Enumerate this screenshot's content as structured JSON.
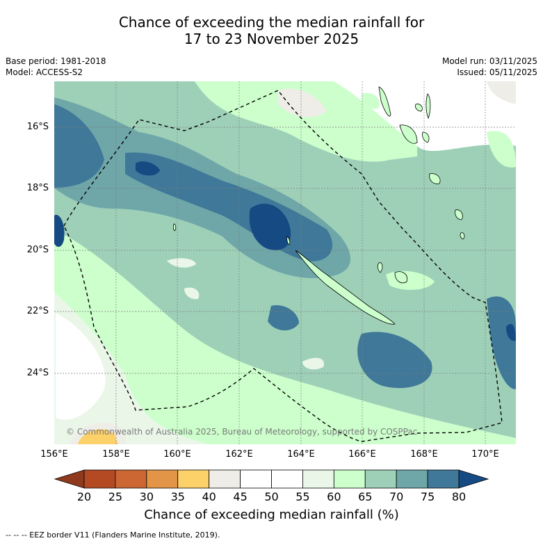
{
  "title_line1": "Chance of exceeding the median rainfall for",
  "title_line2": "17 to 23 November 2025",
  "meta_left": [
    "Base period: 1981-2018",
    "Model: ACCESS-S2"
  ],
  "meta_right": [
    "Model run: 03/11/2025",
    "Issued: 05/11/2025"
  ],
  "lat_labels": [
    "16°S",
    "18°S",
    "20°S",
    "22°S",
    "24°S"
  ],
  "lon_labels": [
    "156°E",
    "158°E",
    "160°E",
    "162°E",
    "164°E",
    "166°E",
    "168°E",
    "170°E"
  ],
  "copyright": "© Commonwealth of Australia 2025, Bureau of Meteorology, supported by COSPPac",
  "colorbar": {
    "title": "Chance of exceeding median rainfall (%)",
    "ticks": [
      "20",
      "25",
      "30",
      "35",
      "40",
      "45",
      "50",
      "55",
      "60",
      "65",
      "70",
      "75",
      "80"
    ],
    "colors": [
      "#8f3a1e",
      "#b34a24",
      "#cc6633",
      "#e29447",
      "#fdd16a",
      "#efede8",
      "#ffffff",
      "#ffffff",
      "#eaf6e8",
      "#ccffcc",
      "#9ed0b8",
      "#6fa6a8",
      "#3f7898",
      "#154a82"
    ]
  },
  "footer": "--  --  -- EEZ border V11 (Flanders Marine Institute, 2019).",
  "legend": {
    "eez_border": "dashed black line"
  }
}
